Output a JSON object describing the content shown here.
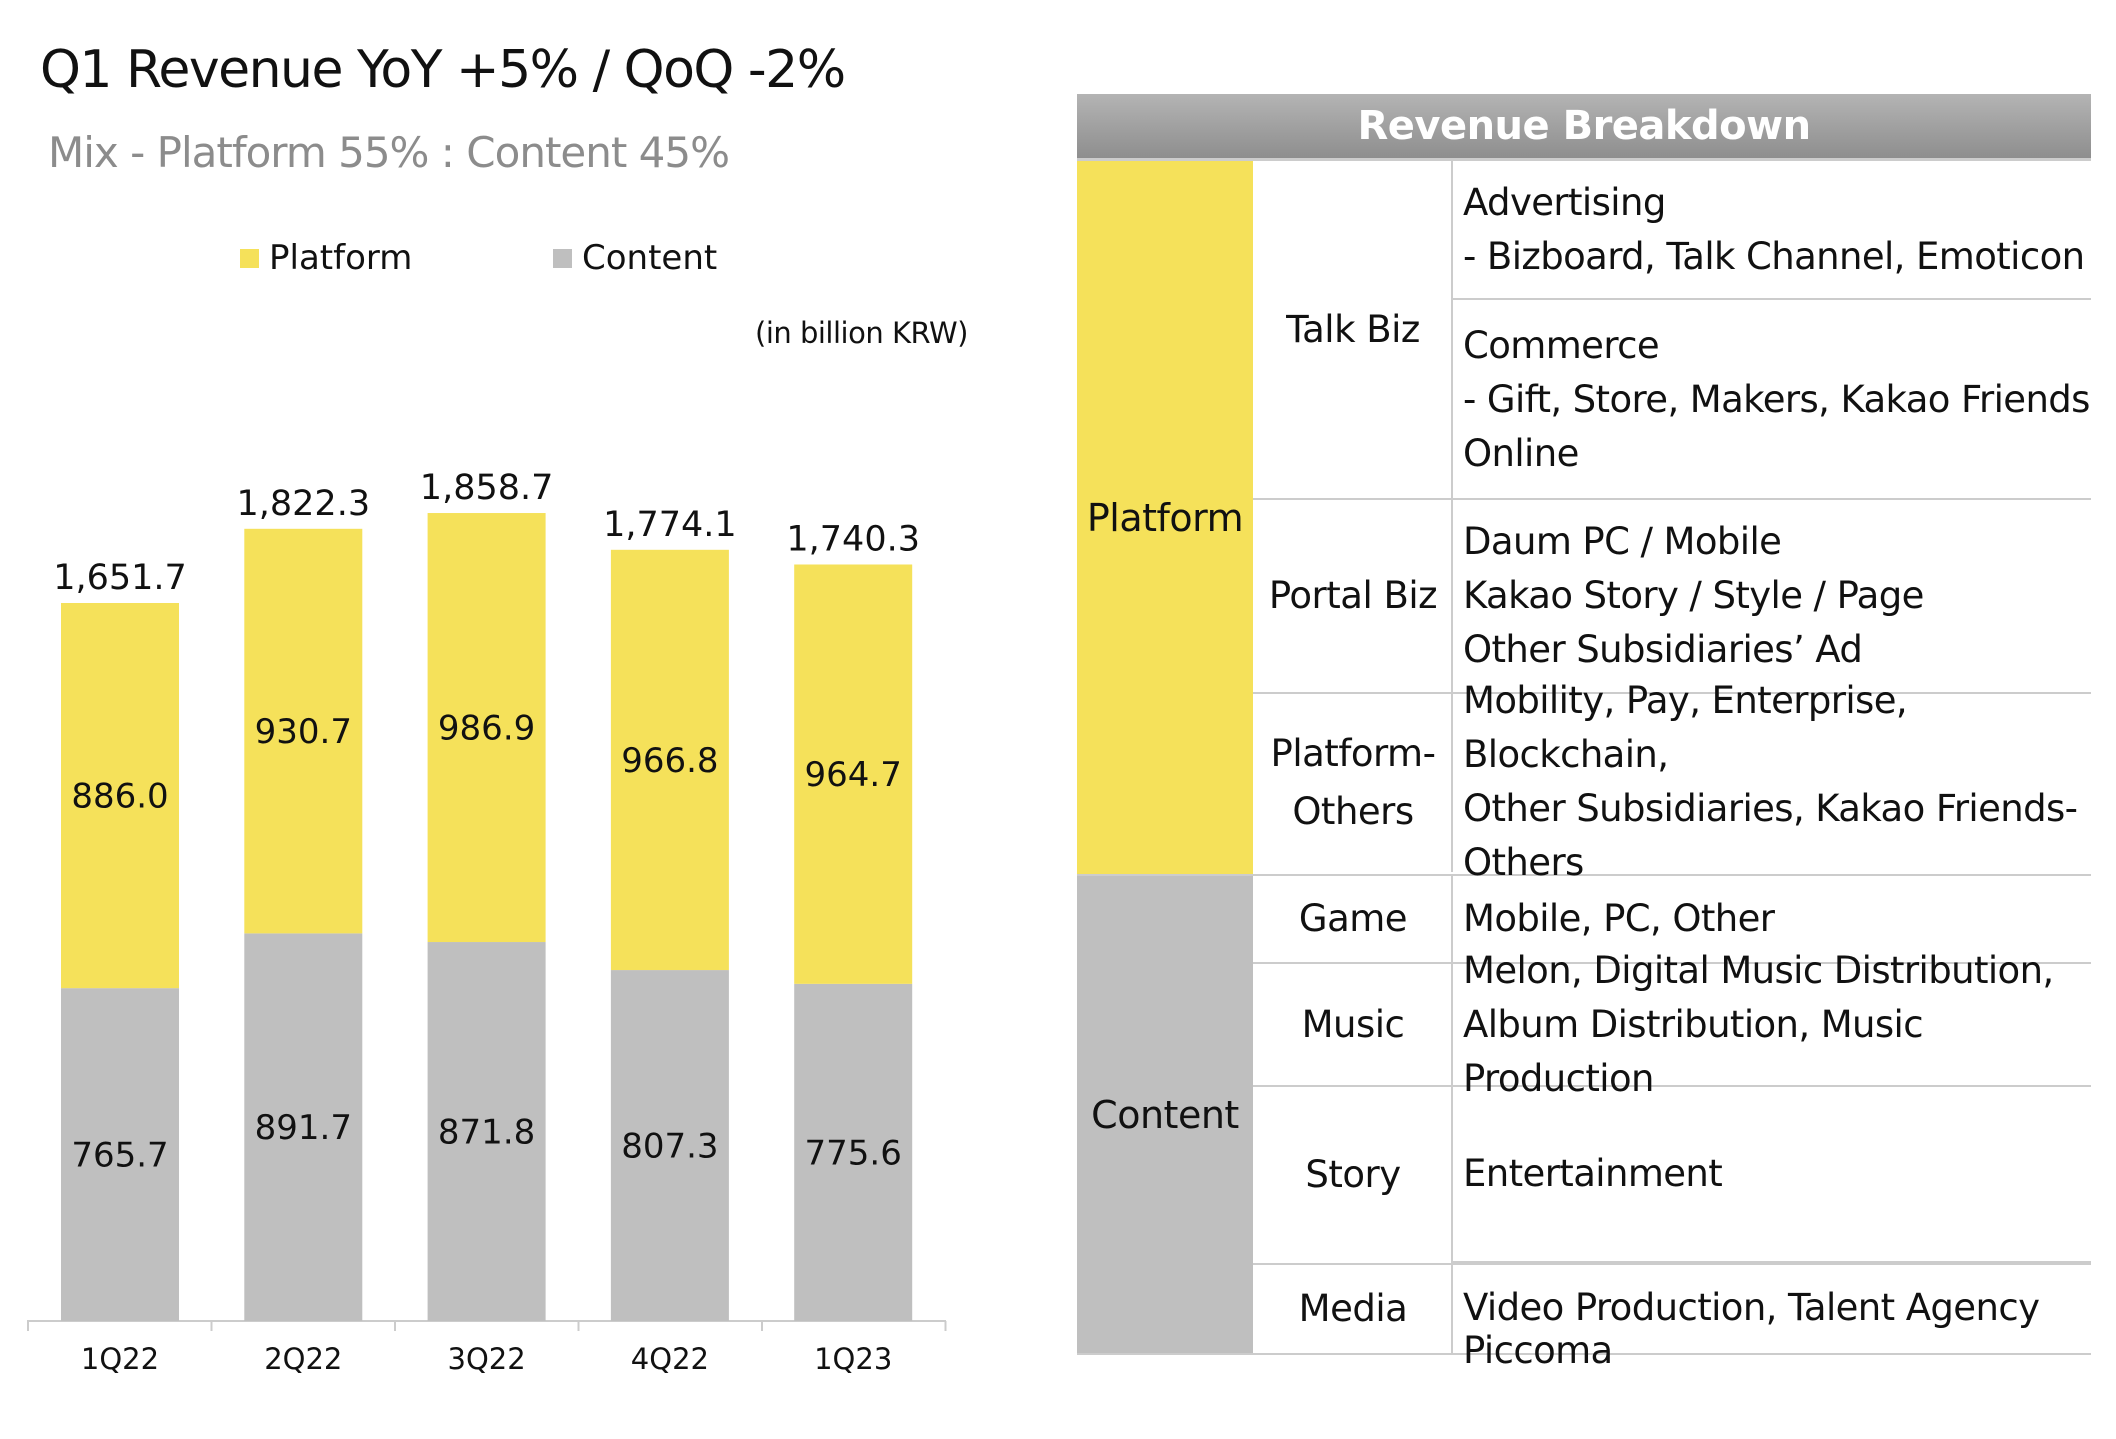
{
  "header": {
    "title": "Q1 Revenue  YoY +5% / QoQ -2%",
    "subtitle": "Mix - Platform 55% : Content 45%",
    "unit": "(in billion KRW)"
  },
  "colors": {
    "platform": "#f5e15a",
    "content": "#bfbfbf"
  },
  "chart_data": {
    "type": "bar",
    "stacked": true,
    "title": "Q1 Revenue  YoY +5% / QoQ -2%",
    "xlabel": "",
    "ylabel": "(in billion KRW)",
    "categories": [
      "1Q22",
      "2Q22",
      "3Q22",
      "4Q22",
      "1Q23"
    ],
    "series": [
      {
        "name": "Content",
        "values": [
          765.7,
          891.7,
          871.8,
          807.3,
          775.6
        ],
        "labels": [
          "765.7",
          "891.7",
          "871.8",
          "807.3",
          "775.6"
        ]
      },
      {
        "name": "Platform",
        "values": [
          886.0,
          930.7,
          986.9,
          966.8,
          964.7
        ],
        "labels": [
          "886.0",
          "930.7",
          "986.9",
          "966.8",
          "964.7"
        ]
      }
    ],
    "totals": [
      "1,651.7",
      "1,822.3",
      "1,858.7",
      "1,774.1",
      "1,740.3"
    ],
    "legend": [
      "Platform",
      "Content"
    ],
    "legend_position": "top",
    "ylim": [
      0,
      2000
    ],
    "grid": false
  },
  "table": {
    "title": "Revenue Breakdown",
    "groups": [
      {
        "name": "Platform",
        "subs": [
          {
            "name": "Talk Biz",
            "items": [
              [
                "Advertising",
                "- Bizboard, Talk Channel, Emoticon"
              ],
              [
                "Commerce",
                "- Gift, Store, Makers, Kakao Friends",
                "Online"
              ]
            ]
          },
          {
            "name": "Portal Biz",
            "items": [
              [
                "Daum PC / Mobile",
                "Kakao Story / Style / Page",
                "Other Subsidiaries’ Ad"
              ]
            ]
          },
          {
            "name": "Platform-\nOthers",
            "items": [
              [
                "Mobility, Pay, Enterprise, Blockchain,",
                "Other Subsidiaries, Kakao Friends-",
                "Others"
              ]
            ]
          }
        ]
      },
      {
        "name": "Content",
        "subs": [
          {
            "name": "Game",
            "items": [
              [
                "Mobile, PC, Other"
              ]
            ]
          },
          {
            "name": "Music",
            "items": [
              [
                "Melon, Digital Music Distribution,",
                "Album Distribution, Music Production"
              ]
            ]
          },
          {
            "name": "Story",
            "items": [
              [
                "Entertainment"
              ],
              [
                "Piccoma"
              ]
            ]
          },
          {
            "name": "Media",
            "items": [
              [
                "Video Production, Talent Agency"
              ]
            ]
          }
        ]
      }
    ]
  }
}
